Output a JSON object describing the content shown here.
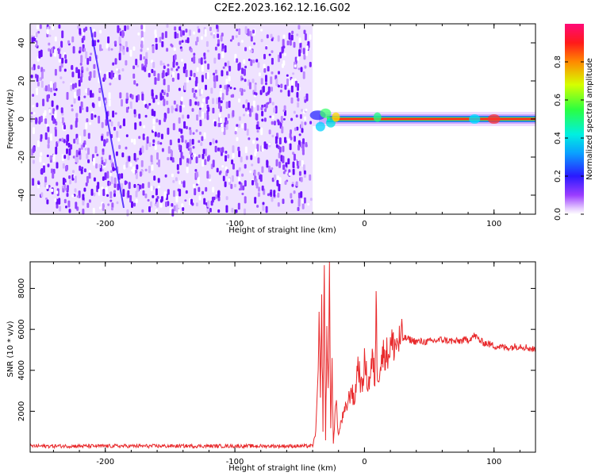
{
  "title": "C2E2.2023.162.12.16.G02",
  "colors": {
    "snr_line": "#e8292b",
    "spectrogram_noise": "#7a1fe8",
    "axis": "#000000"
  },
  "chart_data": [
    {
      "type": "heatmap",
      "title": "C2E2.2023.162.12.16.G02",
      "xlabel": "Height of straight line (km)",
      "ylabel": "Frequency (Hz)",
      "xlim": [
        -258,
        132
      ],
      "ylim": [
        -50,
        50
      ],
      "x_ticks": [
        -200,
        -100,
        0,
        100
      ],
      "y_ticks": [
        -40,
        -20,
        0,
        20,
        40
      ],
      "colorbar": {
        "label": "Normalized spectral amplitude",
        "range": [
          0,
          1
        ],
        "ticks": [
          "0.0",
          "0.2",
          "0.4",
          "0.6",
          "0.8"
        ],
        "colormap": "rainbow"
      },
      "regions": [
        {
          "x_range": [
            -258,
            -40
          ],
          "description_value": "broadband noise",
          "amplitude": 0.2
        },
        {
          "x_range": [
            -40,
            132
          ],
          "freq_hz": 0,
          "amplitude": 0.85
        }
      ]
    },
    {
      "type": "line",
      "xlabel": "Height of straight line (km)",
      "ylabel": "SNR (10 * v/v)",
      "xlim": [
        -258,
        132
      ],
      "ylim": [
        0,
        9300
      ],
      "x_ticks": [
        -200,
        -100,
        0,
        100
      ],
      "y_ticks": [
        2000,
        4000,
        6000,
        8000
      ],
      "series": [
        {
          "x": [
            -258,
            -200,
            -100,
            -40,
            -38,
            -36,
            -35,
            -34,
            -33,
            -32,
            -31,
            -30,
            -29,
            -28,
            -27,
            -26,
            -25,
            -24,
            -22,
            -20,
            -18,
            -15,
            -12,
            -10,
            -8,
            -5,
            -2,
            0,
            3,
            6,
            8,
            9,
            10,
            12,
            15,
            18,
            20,
            25,
            30,
            35,
            40,
            50,
            60,
            70,
            80,
            85,
            90,
            100,
            110,
            120,
            132
          ],
          "y": [
            300,
            300,
            300,
            300,
            800,
            3000,
            6500,
            2500,
            7000,
            1200,
            9300,
            500,
            6000,
            2800,
            9300,
            1000,
            4200,
            500,
            2500,
            800,
            1500,
            2000,
            2600,
            3200,
            2300,
            4400,
            3000,
            4400,
            3200,
            4500,
            3600,
            7300,
            3800,
            4200,
            4900,
            4800,
            5200,
            5300,
            5600,
            5500,
            5400,
            5400,
            5500,
            5400,
            5500,
            5700,
            5400,
            5200,
            5100,
            5200,
            5000
          ]
        }
      ]
    }
  ]
}
